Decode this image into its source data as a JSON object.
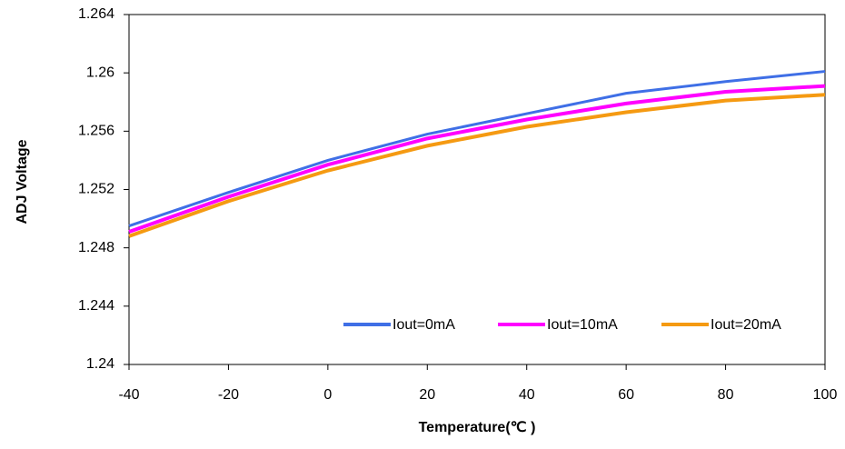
{
  "chart_data": {
    "type": "line",
    "x_label": "Temperature(℃ )",
    "y_label": "ADJ Voltage",
    "x": [
      -40,
      -20,
      0,
      20,
      40,
      60,
      80,
      100
    ],
    "series": [
      {
        "name": "Iout=0mA",
        "color": "#3f6fe6",
        "values": [
          1.2495,
          1.2518,
          1.254,
          1.2558,
          1.2572,
          1.2586,
          1.2594,
          1.2601
        ]
      },
      {
        "name": "Iout=10mA",
        "color": "#ff00ff",
        "values": [
          1.2491,
          1.2515,
          1.2537,
          1.2555,
          1.2568,
          1.2579,
          1.2587,
          1.2591
        ]
      },
      {
        "name": "Iout=20mA",
        "color": "#f59a12",
        "values": [
          1.2488,
          1.2512,
          1.2533,
          1.255,
          1.2563,
          1.2573,
          1.2581,
          1.2585
        ]
      }
    ],
    "xlim": [
      -40,
      100
    ],
    "xticks": [
      -40,
      -20,
      0,
      20,
      40,
      60,
      80,
      100
    ],
    "ylim": [
      1.24,
      1.264
    ],
    "yticks": [
      1.24,
      1.244,
      1.248,
      1.252,
      1.256,
      1.26,
      1.264
    ],
    "grid": false,
    "legend": "lower right"
  }
}
